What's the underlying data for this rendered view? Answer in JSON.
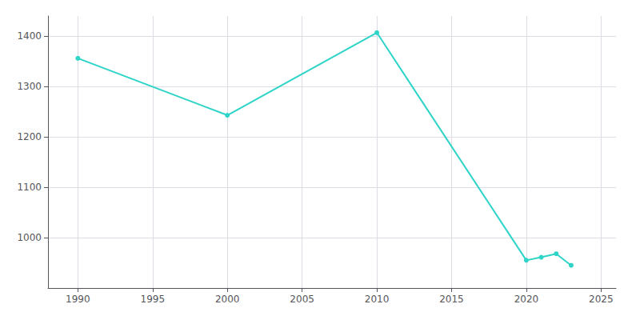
{
  "chart_data": {
    "type": "line",
    "x": [
      1990,
      2000,
      2010,
      2020,
      2021,
      2022,
      2023
    ],
    "values": [
      1356,
      1243,
      1407,
      955,
      961,
      968,
      945
    ],
    "color": "#2dd4c7",
    "marker": "circle",
    "xlim": [
      1988,
      2026
    ],
    "xticks": [
      1990,
      1995,
      2000,
      2005,
      2010,
      2015,
      2020,
      2025
    ],
    "ylim": [
      900,
      1440
    ],
    "yticks": [
      1000,
      1100,
      1200,
      1300,
      1400
    ],
    "grid": true
  }
}
